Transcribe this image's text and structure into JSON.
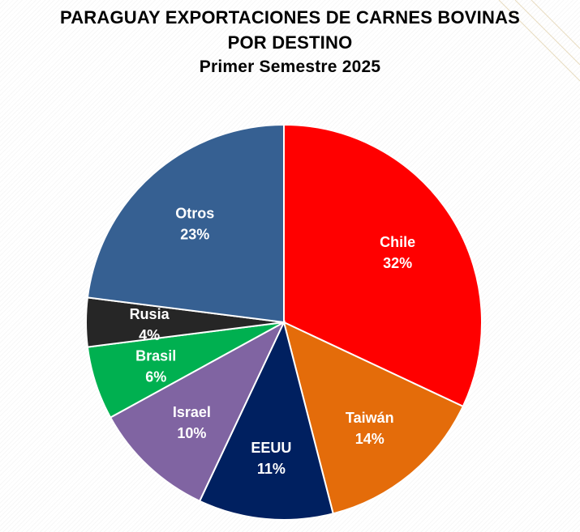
{
  "chart_data": {
    "type": "pie",
    "title": "PARAGUAY EXPORTACIONES DE CARNES BOVINAS",
    "title_line2": "POR DESTINO",
    "subtitle": "Primer Semestre 2025",
    "start_angle_deg": 0,
    "direction": "clockwise",
    "slices": [
      {
        "label": "Chile",
        "value": 32,
        "display": "32%",
        "color": "#ff0000"
      },
      {
        "label": "Taiwán",
        "value": 14,
        "display": "14%",
        "color": "#e46c0a"
      },
      {
        "label": "EEUU",
        "value": 11,
        "display": "11%",
        "color": "#002060"
      },
      {
        "label": "Israel",
        "value": 10,
        "display": "10%",
        "color": "#8064a2"
      },
      {
        "label": "Brasil",
        "value": 6,
        "display": "6%",
        "color": "#00b050"
      },
      {
        "label": "Rusia",
        "value": 4,
        "display": "4%",
        "color": "#262626"
      },
      {
        "label": "Otros",
        "value": 23,
        "display": "23%",
        "color": "#366092"
      }
    ]
  }
}
